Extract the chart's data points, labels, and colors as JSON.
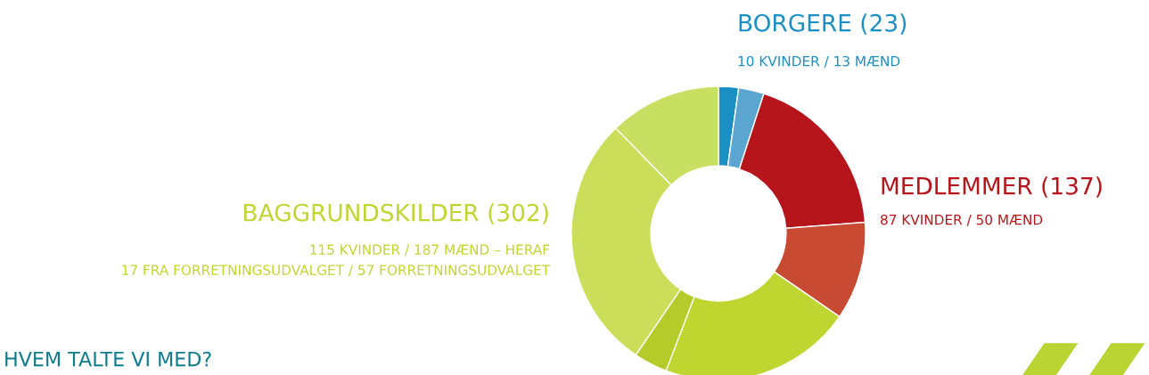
{
  "chart_data": {
    "type": "donut",
    "categories": [
      null,
      null,
      null,
      null,
      null,
      null,
      null,
      null
    ],
    "values": [
      2.2,
      2.8,
      18.8,
      10.8,
      21.2,
      3.7,
      28.2,
      12.3
    ],
    "colors": [
      "#1a8fc4",
      "#5ba6d1",
      "#b7151c",
      "#c84a33",
      "#bfd630",
      "#b4cc2a",
      "#cade5a",
      "#c9df62"
    ],
    "annotations": [
      "BORGERE (23)",
      "10 KVINDER / 13 MÆND",
      "MEDLEMMER (137)",
      "87 KVINDER / 50 MÆND",
      "BAGGRUNDSKILDER (302)",
      "115 KVINDER / 187 MÆND – HERAF\n17 FRA FORRETNINGSUDVALGET / 57 FORRETNINGSUDVALGET",
      "HVEM TALTE VI MED?"
    ]
  }
}
